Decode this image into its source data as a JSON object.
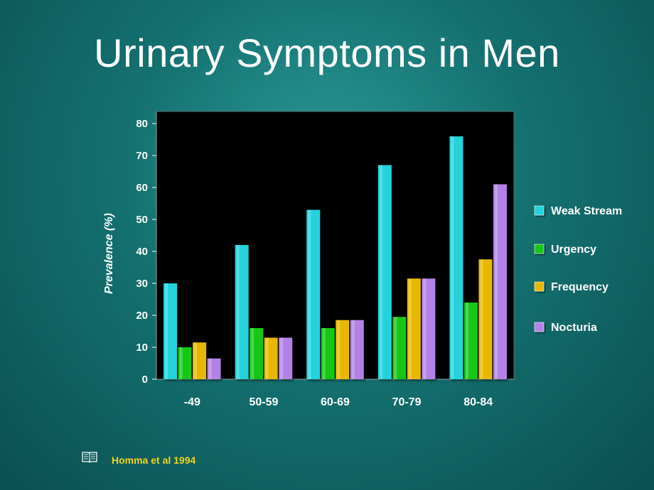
{
  "slide": {
    "title": "Urinary Symptoms in Men",
    "source": "Homma et al 1994",
    "source_icon": "book-icon"
  },
  "colors": {
    "background": "#14706f",
    "plot_area": "#000000",
    "source_text": "#f2d41a"
  },
  "chart_data": {
    "type": "bar",
    "title": "",
    "xlabel": "",
    "ylabel": "Prevalence (%)",
    "ylim": [
      0,
      80
    ],
    "yticks": [
      0,
      10,
      20,
      30,
      40,
      50,
      60,
      70,
      80
    ],
    "categories": [
      "-49",
      "50-59",
      "60-69",
      "70-79",
      "80-84"
    ],
    "legend_position": "right",
    "grid": false,
    "series": [
      {
        "name": "Weak Stream",
        "color": "#22d3dc",
        "values": [
          30,
          42,
          53,
          67,
          76
        ]
      },
      {
        "name": "Urgency",
        "color": "#16c716",
        "values": [
          10,
          16,
          16,
          19.5,
          24
        ]
      },
      {
        "name": "Frequency",
        "color": "#e8b800",
        "values": [
          11.5,
          13,
          18.5,
          31.5,
          37.5
        ]
      },
      {
        "name": "Nocturia",
        "color": "#b382e6",
        "values": [
          6.5,
          13,
          18.5,
          31.5,
          61
        ]
      }
    ]
  }
}
